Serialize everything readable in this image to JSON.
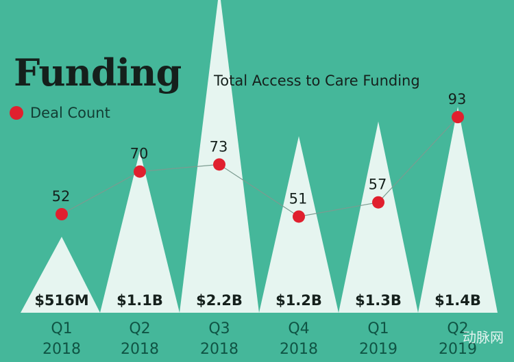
{
  "chart_data": {
    "type": "bar",
    "title": "Funding",
    "subtitle": "Total Access to Care Funding",
    "categories": [
      [
        "Q1",
        "2018"
      ],
      [
        "Q2",
        "2018"
      ],
      [
        "Q3",
        "2018"
      ],
      [
        "Q4",
        "2018"
      ],
      [
        "Q1",
        "2019"
      ],
      [
        "Q2",
        "2019"
      ]
    ],
    "funding_labels": [
      "$516M",
      "$1.1B",
      "$2.2B",
      "$1.2B",
      "$1.3B",
      "$1.4B"
    ],
    "funding_values_billions": [
      0.516,
      1.1,
      2.2,
      1.2,
      1.3,
      1.4
    ],
    "series": [
      {
        "name": "Deal Count",
        "type": "line",
        "values": [
          52,
          70,
          73,
          51,
          57,
          93
        ]
      }
    ],
    "legend": {
      "label": "Deal Count",
      "placement": "top-left"
    },
    "grid": false,
    "colors": {
      "background": "#45b79a",
      "bars": "#e6f5f0",
      "dots": "#e0202e",
      "line": "#7b9b90",
      "text": "#15201c",
      "axis_text": "#0f5444"
    }
  },
  "watermark": "动脉网"
}
